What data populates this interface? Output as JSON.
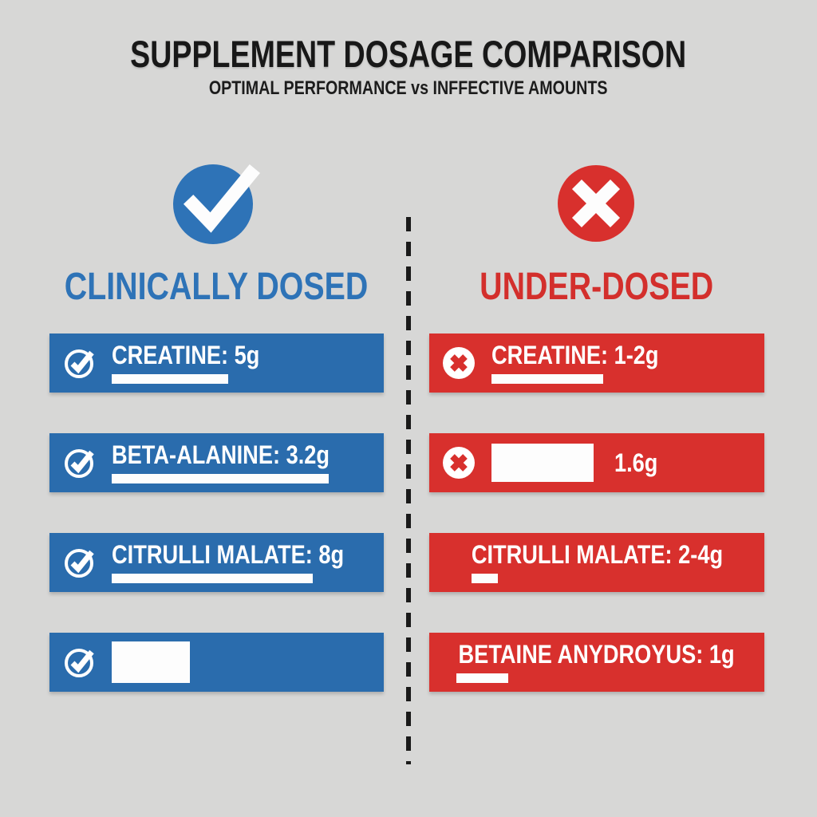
{
  "header": {
    "title": "SUPPLEMENT DOSAGE COMPARISON",
    "subtitle": "OPTIMAL PERFORMANCE vs INFFECTIVE AMOUNTS"
  },
  "left": {
    "heading": "CLINICALLY DOSED",
    "icon": "check-circle",
    "rows": [
      {
        "label": "CREATINE: 5g",
        "underline_width": 146
      },
      {
        "label": "BETA-ALANINE: 3.2g",
        "underline_width": 272
      },
      {
        "label": "CITRULLI MALATE: 8g",
        "underline_width": 252
      },
      {
        "label": "",
        "blank_box": true
      }
    ]
  },
  "right": {
    "heading": "UNDER-DOSED",
    "icon": "x-circle",
    "rows": [
      {
        "label": "CREATINE: 1-2g",
        "underline_width": 140
      },
      {
        "label": "1.6g",
        "blank_box": true
      },
      {
        "label": "CITRULLI MALATE: 2-4g",
        "underline_width": 33
      },
      {
        "label": "BETAINE ANYDROYUS: 1g",
        "underline_width": 65
      }
    ]
  },
  "colors": {
    "blue_bar": "#2a6cad",
    "blue_accent": "#2e73b7",
    "red_bar": "#d8302d",
    "red_accent": "#d32f2c",
    "background": "#d7d7d6",
    "title_text": "#181818",
    "white": "#ffffff"
  },
  "chart_data": {
    "type": "table",
    "title": "SUPPLEMENT DOSAGE COMPARISON",
    "subtitle": "OPTIMAL PERFORMANCE vs INFFECTIVE AMOUNTS",
    "columns": [
      "CLINICALLY DOSED",
      "UNDER-DOSED"
    ],
    "rows": [
      {
        "supplement": "CREATINE",
        "clinically_dosed": "5g",
        "under_dosed": "1-2g"
      },
      {
        "supplement": "BETA-ALANINE",
        "clinically_dosed": "3.2g",
        "under_dosed": "1.6g"
      },
      {
        "supplement": "CITRULLI MALATE",
        "clinically_dosed": "8g",
        "under_dosed": "2-4g"
      },
      {
        "supplement": "BETAINE ANYDROYUS",
        "clinically_dosed": "",
        "under_dosed": "1g"
      }
    ]
  }
}
